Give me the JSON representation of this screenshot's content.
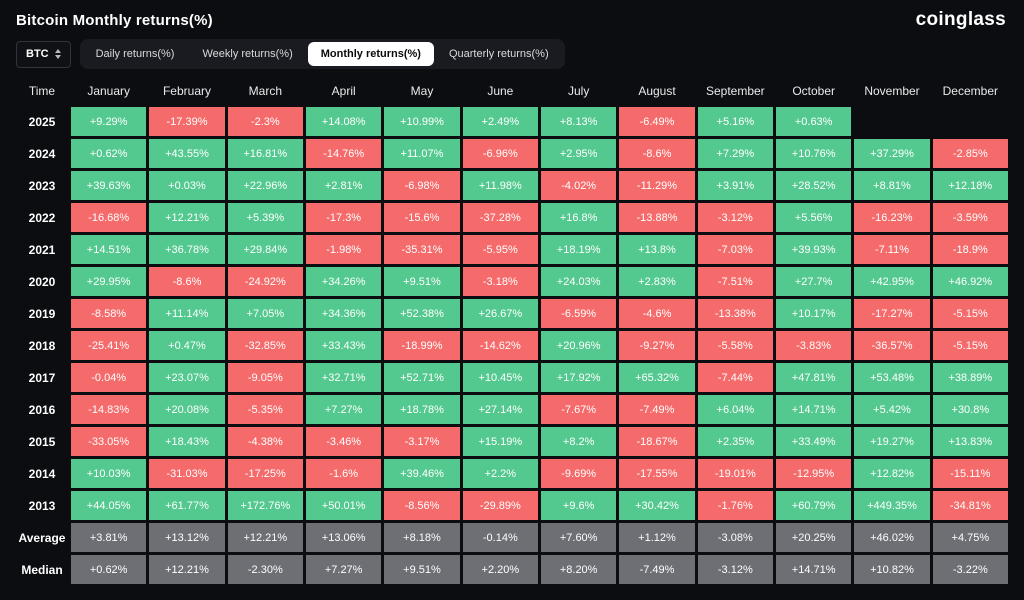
{
  "header": {
    "title": "Bitcoin Monthly returns(%)",
    "brand": "coinglass"
  },
  "toolbar": {
    "coin_selector": {
      "label": "BTC",
      "icon": "up-down-caret-icon"
    },
    "tabs": [
      {
        "label": "Daily returns(%)",
        "active": false
      },
      {
        "label": "Weekly returns(%)",
        "active": false
      },
      {
        "label": "Monthly returns(%)",
        "active": true
      },
      {
        "label": "Quarterly returns(%)",
        "active": false
      }
    ]
  },
  "colors": {
    "bg": "#0c0d10",
    "positive": "#53c98f",
    "negative": "#f56b6b",
    "neutral": "#6d6f75",
    "tab_bg": "#191b20",
    "tab_active_bg": "#ffffff"
  },
  "table": {
    "time_header": "Time",
    "columns": [
      "January",
      "February",
      "March",
      "April",
      "May",
      "June",
      "July",
      "August",
      "September",
      "October",
      "November",
      "December"
    ],
    "rows": [
      {
        "label": "2025",
        "type": "year",
        "cells": [
          "+9.29%",
          "-17.39%",
          "-2.3%",
          "+14.08%",
          "+10.99%",
          "+2.49%",
          "+8.13%",
          "-6.49%",
          "+5.16%",
          "+0.63%",
          "",
          ""
        ]
      },
      {
        "label": "2024",
        "type": "year",
        "cells": [
          "+0.62%",
          "+43.55%",
          "+16.81%",
          "-14.76%",
          "+11.07%",
          "-6.96%",
          "+2.95%",
          "-8.6%",
          "+7.29%",
          "+10.76%",
          "+37.29%",
          "-2.85%"
        ]
      },
      {
        "label": "2023",
        "type": "year",
        "cells": [
          "+39.63%",
          "+0.03%",
          "+22.96%",
          "+2.81%",
          "-6.98%",
          "+11.98%",
          "-4.02%",
          "-11.29%",
          "+3.91%",
          "+28.52%",
          "+8.81%",
          "+12.18%"
        ]
      },
      {
        "label": "2022",
        "type": "year",
        "cells": [
          "-16.68%",
          "+12.21%",
          "+5.39%",
          "-17.3%",
          "-15.6%",
          "-37.28%",
          "+16.8%",
          "-13.88%",
          "-3.12%",
          "+5.56%",
          "-16.23%",
          "-3.59%"
        ]
      },
      {
        "label": "2021",
        "type": "year",
        "cells": [
          "+14.51%",
          "+36.78%",
          "+29.84%",
          "-1.98%",
          "-35.31%",
          "-5.95%",
          "+18.19%",
          "+13.8%",
          "-7.03%",
          "+39.93%",
          "-7.11%",
          "-18.9%"
        ]
      },
      {
        "label": "2020",
        "type": "year",
        "cells": [
          "+29.95%",
          "-8.6%",
          "-24.92%",
          "+34.26%",
          "+9.51%",
          "-3.18%",
          "+24.03%",
          "+2.83%",
          "-7.51%",
          "+27.7%",
          "+42.95%",
          "+46.92%"
        ]
      },
      {
        "label": "2019",
        "type": "year",
        "cells": [
          "-8.58%",
          "+11.14%",
          "+7.05%",
          "+34.36%",
          "+52.38%",
          "+26.67%",
          "-6.59%",
          "-4.6%",
          "-13.38%",
          "+10.17%",
          "-17.27%",
          "-5.15%"
        ]
      },
      {
        "label": "2018",
        "type": "year",
        "cells": [
          "-25.41%",
          "+0.47%",
          "-32.85%",
          "+33.43%",
          "-18.99%",
          "-14.62%",
          "+20.96%",
          "-9.27%",
          "-5.58%",
          "-3.83%",
          "-36.57%",
          "-5.15%"
        ]
      },
      {
        "label": "2017",
        "type": "year",
        "cells": [
          "-0.04%",
          "+23.07%",
          "-9.05%",
          "+32.71%",
          "+52.71%",
          "+10.45%",
          "+17.92%",
          "+65.32%",
          "-7.44%",
          "+47.81%",
          "+53.48%",
          "+38.89%"
        ]
      },
      {
        "label": "2016",
        "type": "year",
        "cells": [
          "-14.83%",
          "+20.08%",
          "-5.35%",
          "+7.27%",
          "+18.78%",
          "+27.14%",
          "-7.67%",
          "-7.49%",
          "+6.04%",
          "+14.71%",
          "+5.42%",
          "+30.8%"
        ]
      },
      {
        "label": "2015",
        "type": "year",
        "cells": [
          "-33.05%",
          "+18.43%",
          "-4.38%",
          "-3.46%",
          "-3.17%",
          "+15.19%",
          "+8.2%",
          "-18.67%",
          "+2.35%",
          "+33.49%",
          "+19.27%",
          "+13.83%"
        ]
      },
      {
        "label": "2014",
        "type": "year",
        "cells": [
          "+10.03%",
          "-31.03%",
          "-17.25%",
          "-1.6%",
          "+39.46%",
          "+2.2%",
          "-9.69%",
          "-17.55%",
          "-19.01%",
          "-12.95%",
          "+12.82%",
          "-15.11%"
        ]
      },
      {
        "label": "2013",
        "type": "year",
        "cells": [
          "+44.05%",
          "+61.77%",
          "+172.76%",
          "+50.01%",
          "-8.56%",
          "-29.89%",
          "+9.6%",
          "+30.42%",
          "-1.76%",
          "+60.79%",
          "+449.35%",
          "-34.81%"
        ]
      },
      {
        "label": "Average",
        "type": "summary",
        "cells": [
          "+3.81%",
          "+13.12%",
          "+12.21%",
          "+13.06%",
          "+8.18%",
          "-0.14%",
          "+7.60%",
          "+1.12%",
          "-3.08%",
          "+20.25%",
          "+46.02%",
          "+4.75%"
        ]
      },
      {
        "label": "Median",
        "type": "summary",
        "cells": [
          "+0.62%",
          "+12.21%",
          "-2.30%",
          "+7.27%",
          "+9.51%",
          "+2.20%",
          "+8.20%",
          "-7.49%",
          "-3.12%",
          "+14.71%",
          "+10.82%",
          "-3.22%"
        ]
      }
    ]
  }
}
